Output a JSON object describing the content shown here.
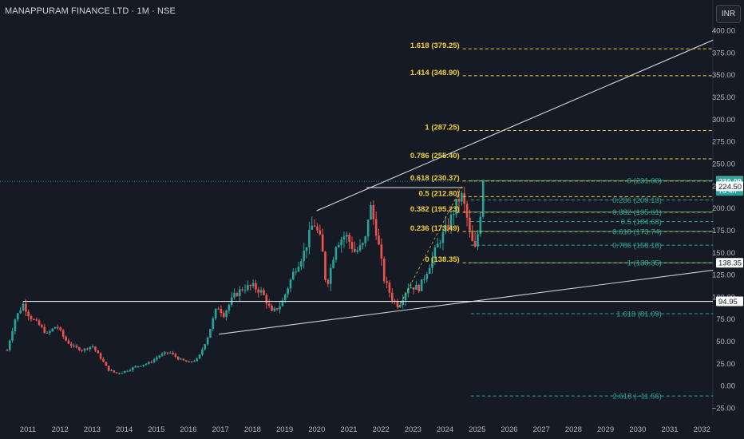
{
  "header": {
    "symbol_title": "MANAPPURAM FINANCE LTD · 1M · NSE",
    "currency_label": "INR"
  },
  "colors": {
    "background": "#161a25",
    "up": "#26a69a",
    "down": "#ef5350",
    "fib_upper": "#f0d03a",
    "fib_lower": "#26a69a",
    "channel": "#d1d4dc"
  },
  "chart_data": {
    "type": "candlestick",
    "x_ticks": [
      "2011",
      "2012",
      "2013",
      "2014",
      "2015",
      "2016",
      "2017",
      "2018",
      "2019",
      "2020",
      "2021",
      "2022",
      "2023",
      "2024",
      "2025",
      "2026",
      "2027",
      "2028",
      "2029",
      "2030",
      "2031",
      "2032"
    ],
    "y_ticks": [
      "400.00",
      "375.00",
      "350.00",
      "325.00",
      "300.00",
      "275.00",
      "250.00",
      "225.00",
      "200.00",
      "175.00",
      "150.00",
      "125.00",
      "100.00",
      "75.00",
      "50.00",
      "25.00",
      "0.00",
      "−25.00"
    ],
    "ylim": [
      -32,
      410
    ],
    "price_path": [
      {
        "t": 2010.35,
        "p": 40
      },
      {
        "t": 2010.6,
        "p": 75
      },
      {
        "t": 2010.85,
        "p": 92
      },
      {
        "t": 2011.05,
        "p": 78
      },
      {
        "t": 2011.3,
        "p": 70
      },
      {
        "t": 2011.6,
        "p": 58
      },
      {
        "t": 2011.9,
        "p": 68
      },
      {
        "t": 2012.15,
        "p": 52
      },
      {
        "t": 2012.4,
        "p": 44
      },
      {
        "t": 2012.7,
        "p": 40
      },
      {
        "t": 2013.0,
        "p": 45
      },
      {
        "t": 2013.25,
        "p": 32
      },
      {
        "t": 2013.5,
        "p": 18
      },
      {
        "t": 2013.75,
        "p": 14
      },
      {
        "t": 2014.0,
        "p": 16
      },
      {
        "t": 2014.4,
        "p": 22
      },
      {
        "t": 2014.8,
        "p": 26
      },
      {
        "t": 2015.1,
        "p": 34
      },
      {
        "t": 2015.4,
        "p": 38
      },
      {
        "t": 2015.7,
        "p": 30
      },
      {
        "t": 2016.0,
        "p": 26
      },
      {
        "t": 2016.3,
        "p": 30
      },
      {
        "t": 2016.6,
        "p": 55
      },
      {
        "t": 2016.9,
        "p": 90
      },
      {
        "t": 2017.1,
        "p": 80
      },
      {
        "t": 2017.4,
        "p": 100
      },
      {
        "t": 2017.7,
        "p": 110
      },
      {
        "t": 2018.0,
        "p": 112
      },
      {
        "t": 2018.3,
        "p": 105
      },
      {
        "t": 2018.6,
        "p": 82
      },
      {
        "t": 2018.9,
        "p": 92
      },
      {
        "t": 2019.3,
        "p": 130
      },
      {
        "t": 2019.6,
        "p": 150
      },
      {
        "t": 2019.9,
        "p": 185
      },
      {
        "t": 2020.15,
        "p": 160
      },
      {
        "t": 2020.3,
        "p": 110
      },
      {
        "t": 2020.6,
        "p": 160
      },
      {
        "t": 2020.9,
        "p": 170
      },
      {
        "t": 2021.2,
        "p": 150
      },
      {
        "t": 2021.5,
        "p": 160
      },
      {
        "t": 2021.65,
        "p": 205
      },
      {
        "t": 2021.85,
        "p": 175
      },
      {
        "t": 2022.1,
        "p": 120
      },
      {
        "t": 2022.35,
        "p": 98
      },
      {
        "t": 2022.55,
        "p": 90
      },
      {
        "t": 2022.85,
        "p": 112
      },
      {
        "t": 2023.2,
        "p": 110
      },
      {
        "t": 2023.5,
        "p": 135
      },
      {
        "t": 2023.85,
        "p": 165
      },
      {
        "t": 2024.1,
        "p": 180
      },
      {
        "t": 2024.3,
        "p": 200
      },
      {
        "t": 2024.5,
        "p": 215
      },
      {
        "t": 2024.65,
        "p": 195
      },
      {
        "t": 2024.8,
        "p": 165
      },
      {
        "t": 2024.95,
        "p": 152
      },
      {
        "t": 2025.1,
        "p": 195
      },
      {
        "t": 2025.25,
        "p": 230.09
      }
    ],
    "channel_lines": [
      {
        "from": [
          2020.0,
          197
        ],
        "to": [
          2032.35,
          389
        ]
      },
      {
        "from": [
          2016.95,
          58
        ],
        "to": [
          2032.35,
          130
        ]
      }
    ],
    "horizontal_levels": [
      {
        "t1": 2010.85,
        "t2": 2032.45,
        "p": 94.95
      },
      {
        "t1": 2021.55,
        "t2": 2024.55,
        "p": 223.0
      }
    ],
    "fib_upper": {
      "x1": 2024.55,
      "x2": 2032.35,
      "levels": [
        {
          "label": "1.618 (379.25)",
          "p": 379.25
        },
        {
          "label": "1.414 (348.90)",
          "p": 348.9
        },
        {
          "label": "1 (287.25)",
          "p": 287.25
        },
        {
          "label": "0.786 (255.40)",
          "p": 255.4
        },
        {
          "label": "0.618 (230.37)",
          "p": 230.37
        },
        {
          "label": "0.5 (212.80)",
          "p": 212.8
        },
        {
          "label": "0.382 (195.23)",
          "p": 195.23
        },
        {
          "label": "0.236 (173.49)",
          "p": 173.49
        },
        {
          "label": "0 (138.35)",
          "p": 138.35
        }
      ]
    },
    "fib_lower": {
      "x1": 2024.8,
      "x2": 2032.35,
      "levels": [
        {
          "label": "0 (231.00)",
          "p": 231.0
        },
        {
          "label": "0.236 (209.13)",
          "p": 209.13
        },
        {
          "label": "0.382 (195.61)",
          "p": 195.61
        },
        {
          "label": "0.5 (184.68)",
          "p": 184.68
        },
        {
          "label": "0.618 (173.74)",
          "p": 173.74
        },
        {
          "label": "0.786 (158.18)",
          "p": 158.18
        },
        {
          "label": "1 (138.35)",
          "p": 138.35
        },
        {
          "label": "1.618 (81.09)",
          "p": 81.09
        },
        {
          "label": "2.618 (−11.56)",
          "p": -11.56
        }
      ]
    },
    "price_labels": [
      {
        "text": "230.40",
        "p": 230.4,
        "style": "white"
      },
      {
        "text": "230.09",
        "p": 230.09,
        "style": "green",
        "sub": "7d 4h"
      },
      {
        "text": "224.50",
        "p": 224.5,
        "style": "white"
      },
      {
        "text": "138.35",
        "p": 138.35,
        "style": "white"
      },
      {
        "text": "94.95",
        "p": 94.95,
        "style": "white"
      }
    ],
    "current_price": 230.09
  }
}
